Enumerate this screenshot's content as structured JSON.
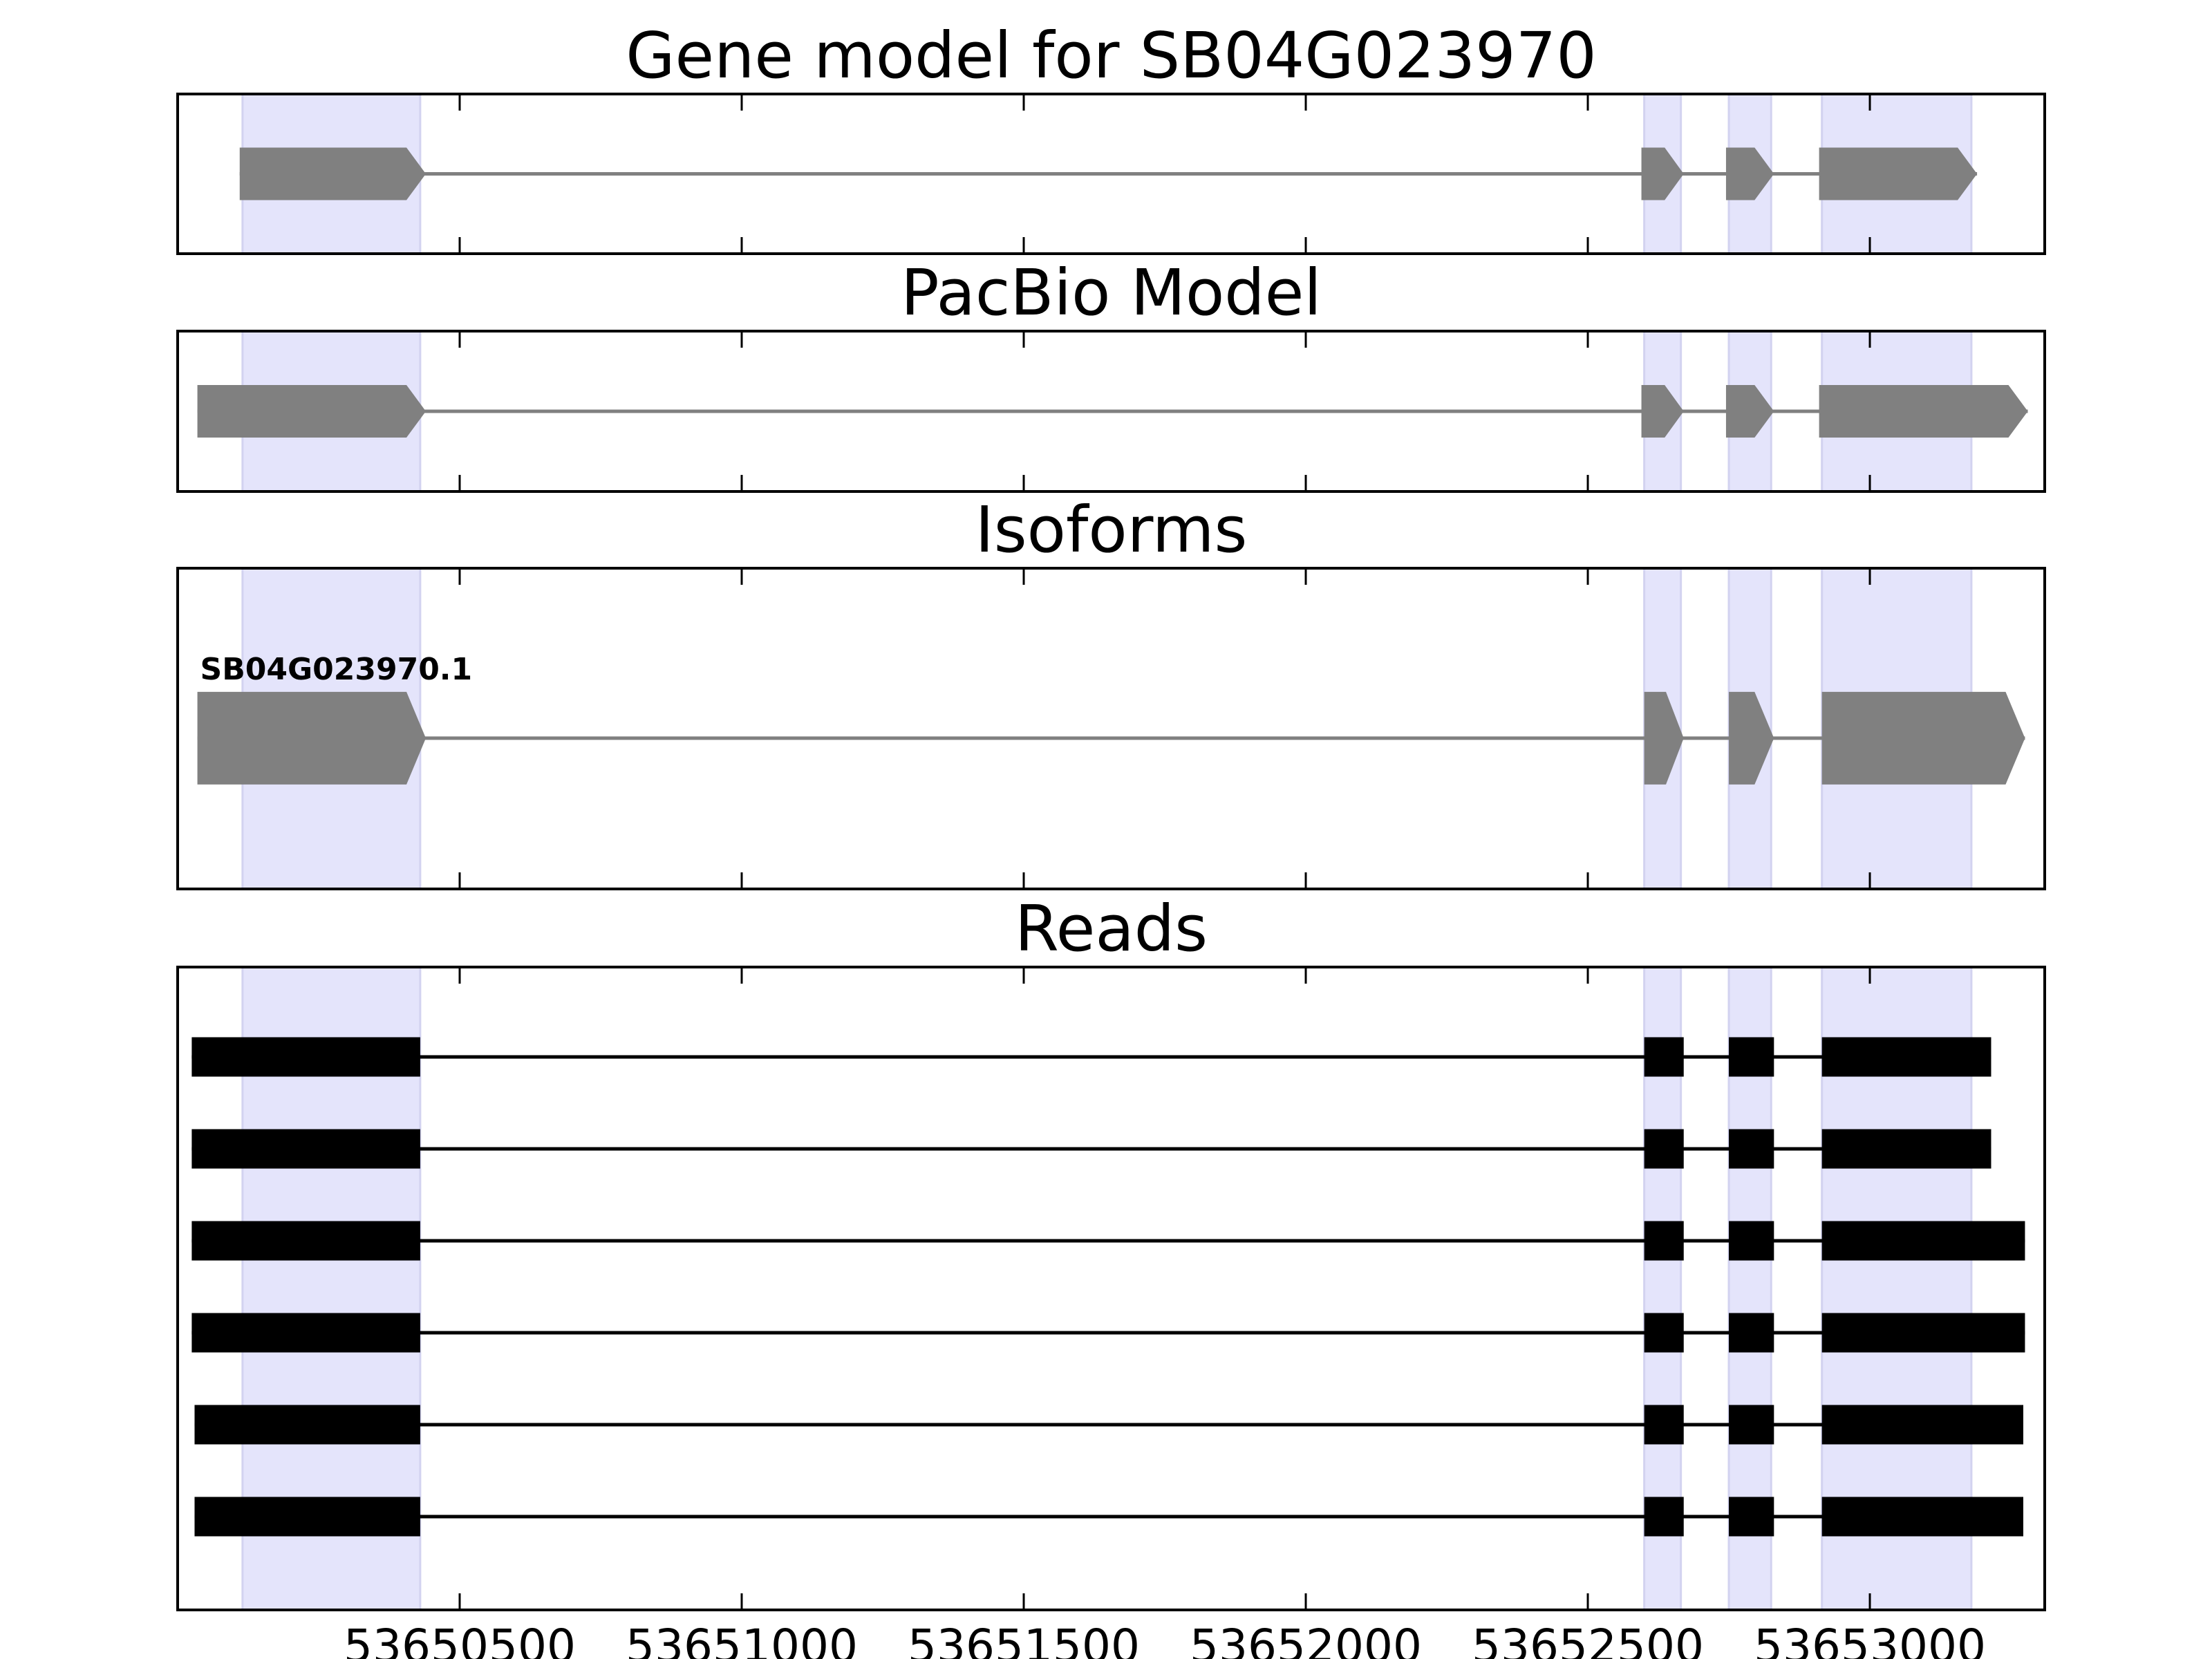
{
  "colors": {
    "highlight": "#e4e4fb",
    "model_fill": "#808080",
    "read_fill": "#000000",
    "frame": "#000000"
  },
  "chart_data": {
    "type": "gene-track",
    "xlim": [
      53650000,
      53653310
    ],
    "x_ticks": [
      53650500,
      53651000,
      53651500,
      53652000,
      53652500,
      53653000
    ],
    "x_tick_labels": [
      "53650500",
      "53651000",
      "53651500",
      "53652000",
      "53652500",
      "53653000"
    ],
    "highlight_regions": [
      [
        53650115,
        53650430
      ],
      [
        53652600,
        53652665
      ],
      [
        53652750,
        53652825
      ],
      [
        53652915,
        53653180
      ]
    ],
    "panels": [
      {
        "title": "Gene model for SB04G023970",
        "kind": "model",
        "tracks": [
          {
            "label": "",
            "strand": "+",
            "exons": [
              [
                53650110,
                53650440
              ],
              [
                53652595,
                53652670
              ],
              [
                53652745,
                53652830
              ],
              [
                53652910,
                53653190
              ]
            ]
          }
        ]
      },
      {
        "title": "PacBio Model",
        "kind": "model",
        "tracks": [
          {
            "label": "",
            "strand": "+",
            "exons": [
              [
                53650035,
                53650440
              ],
              [
                53652595,
                53652670
              ],
              [
                53652745,
                53652830
              ],
              [
                53652910,
                53653280
              ]
            ]
          }
        ]
      },
      {
        "title": "Isoforms",
        "kind": "model",
        "tracks": [
          {
            "label": "SB04G023970.1",
            "strand": "+",
            "exons": [
              [
                53650035,
                53650440
              ],
              [
                53652600,
                53652670
              ],
              [
                53652750,
                53652830
              ],
              [
                53652915,
                53653275
              ]
            ]
          }
        ]
      },
      {
        "title": "Reads",
        "kind": "reads",
        "tracks": [
          {
            "label": "",
            "exons": [
              [
                53650025,
                53650430
              ],
              [
                53652600,
                53652670
              ],
              [
                53652750,
                53652830
              ],
              [
                53652915,
                53653215
              ]
            ]
          },
          {
            "label": "",
            "exons": [
              [
                53650025,
                53650430
              ],
              [
                53652600,
                53652670
              ],
              [
                53652750,
                53652830
              ],
              [
                53652915,
                53653215
              ]
            ]
          },
          {
            "label": "",
            "exons": [
              [
                53650025,
                53650430
              ],
              [
                53652600,
                53652670
              ],
              [
                53652750,
                53652830
              ],
              [
                53652915,
                53653275
              ]
            ]
          },
          {
            "label": "",
            "exons": [
              [
                53650025,
                53650430
              ],
              [
                53652600,
                53652670
              ],
              [
                53652750,
                53652830
              ],
              [
                53652915,
                53653275
              ]
            ]
          },
          {
            "label": "",
            "exons": [
              [
                53650030,
                53650430
              ],
              [
                53652600,
                53652670
              ],
              [
                53652750,
                53652830
              ],
              [
                53652915,
                53653272
              ]
            ]
          },
          {
            "label": "",
            "exons": [
              [
                53650030,
                53650430
              ],
              [
                53652600,
                53652670
              ],
              [
                53652750,
                53652830
              ],
              [
                53652915,
                53653272
              ]
            ]
          }
        ]
      }
    ]
  }
}
